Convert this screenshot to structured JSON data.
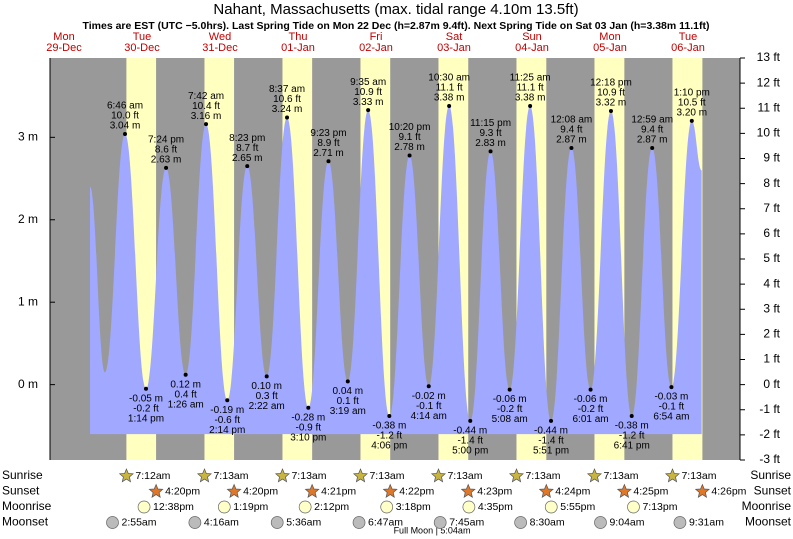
{
  "chart_data": {
    "type": "tide",
    "title": "Nahant, Massachusetts (max. tidal range 4.10m 13.5ft)",
    "subtitle": "Times are EST (UTC −5.0hrs). Last Spring Tide on Mon 22 Dec (h=2.87m 9.4ft). Next Spring Tide on Sat 03 Jan (h=3.38m 11.1ft)",
    "days": [
      {
        "day": "Mon",
        "date": "29-Dec",
        "x": 12
      },
      {
        "day": "Tue",
        "date": "30-Dec",
        "x": 36
      },
      {
        "day": "Wed",
        "date": "31-Dec",
        "x": 60
      },
      {
        "day": "Thu",
        "date": "01-Jan",
        "x": 84
      },
      {
        "day": "Fri",
        "date": "02-Jan",
        "x": 108
      },
      {
        "day": "Sat",
        "date": "03-Jan",
        "x": 132
      },
      {
        "day": "Sun",
        "date": "04-Jan",
        "x": 156
      },
      {
        "day": "Mon",
        "date": "05-Jan",
        "x": 180
      },
      {
        "day": "Tue",
        "date": "06-Jan",
        "x": 204
      }
    ],
    "xlim": [
      7.69,
      220
    ],
    "ylim": [
      -0.9144,
      3.9624
    ],
    "yticks": [
      {
        "value": 0,
        "label": "0 m"
      },
      {
        "value": 1,
        "label": "1 m"
      },
      {
        "value": 2,
        "label": "2 m"
      },
      {
        "value": 3,
        "label": "3 m"
      }
    ],
    "y2lim": [
      -3,
      13
    ],
    "y2ticks": [
      {
        "value": -3,
        "label": "-3 ft"
      },
      {
        "value": -2,
        "label": "-2 ft"
      },
      {
        "value": -1,
        "label": "-1 ft"
      },
      {
        "value": 0,
        "label": "0 ft"
      },
      {
        "value": 1,
        "label": "1 ft"
      },
      {
        "value": 2,
        "label": "2 ft"
      },
      {
        "value": 3,
        "label": "3 ft"
      },
      {
        "value": 4,
        "label": "4 ft"
      },
      {
        "value": 5,
        "label": "5 ft"
      },
      {
        "value": 6,
        "label": "6 ft"
      },
      {
        "value": 7,
        "label": "7 ft"
      },
      {
        "value": 8,
        "label": "8 ft"
      },
      {
        "value": 9,
        "label": "9 ft"
      },
      {
        "value": 10,
        "label": "10 ft"
      },
      {
        "value": 11,
        "label": "11 ft"
      },
      {
        "value": 12,
        "label": "12 ft"
      },
      {
        "value": 13,
        "label": "13 ft"
      }
    ],
    "color": "#a0a8ff",
    "x": [
      20,
      24.6,
      30.77,
      37.23,
      43.4,
      49.43,
      55.7,
      62.23,
      68.38,
      74.37,
      80.62,
      87.17,
      93.38,
      99.32,
      105.58,
      112.1,
      118.33,
      124.23,
      130.5,
      137,
      143.25,
      149.13,
      155.42,
      161.85,
      168.13,
      174.02,
      180.3,
      186.68,
      192.98,
      198.9,
      205.17,
      208.2
    ],
    "values": [
      2.4,
      0.15,
      3.04,
      -0.05,
      2.63,
      0.12,
      3.16,
      -0.19,
      2.65,
      0.1,
      3.24,
      -0.28,
      2.71,
      0.04,
      3.33,
      -0.38,
      2.78,
      -0.02,
      3.38,
      -0.44,
      2.83,
      -0.06,
      3.38,
      -0.44,
      2.87,
      -0.06,
      3.32,
      -0.38,
      2.87,
      -0.03,
      3.2,
      2.6
    ],
    "value_labels": [
      null,
      null,
      "3.04 m",
      "-0.05 m",
      "2.63 m",
      "0.12 m",
      "3.16 m",
      "-0.19 m",
      "2.65 m",
      "0.10 m",
      "3.24 m",
      "-0.28 m",
      "2.71 m",
      "0.04 m",
      "3.33 m",
      "-0.38 m",
      "2.78 m",
      "-0.02 m",
      "3.38 m",
      "-0.44 m",
      "2.83 m",
      "-0.06 m",
      "3.38 m",
      "-0.44 m",
      "2.87 m",
      "-0.06 m",
      "3.32 m",
      "-0.38 m",
      "2.87 m",
      "-0.03 m",
      "3.20 m",
      null
    ],
    "ft_labels": [
      null,
      null,
      "10.0 ft",
      "-0.2 ft",
      "8.6 ft",
      "0.4 ft",
      "10.4 ft",
      "-0.6 ft",
      "8.7 ft",
      "0.3 ft",
      "10.6 ft",
      "-0.9 ft",
      "8.9 ft",
      "0.1 ft",
      "10.9 ft",
      "-1.2 ft",
      "9.1 ft",
      "-0.1 ft",
      "11.1 ft",
      "-1.4 ft",
      "9.3 ft",
      "-0.2 ft",
      "11.1 ft",
      "-1.4 ft",
      "9.4 ft",
      "-0.2 ft",
      "10.9 ft",
      "-1.2 ft",
      "9.4 ft",
      "-0.1 ft",
      "10.5 ft",
      null
    ],
    "times": [
      null,
      null,
      "6:46 am",
      "1:14 pm",
      "7:24 pm",
      "1:26 am",
      "7:42 am",
      "2:14 pm",
      "8:23 pm",
      "2:22 am",
      "8:37 am",
      "3:10 pm",
      "9:23 pm",
      "3:19 am",
      "9:35 am",
      "4:06 pm",
      "10:20 pm",
      "4:14 am",
      "10:30 am",
      "5:00 pm",
      "11:15 pm",
      "5:08 am",
      "11:25 am",
      "5:51 pm",
      "12:08 am",
      "6:01 am",
      "12:18 pm",
      "6:41 pm",
      "12:59 am",
      "6:54 am",
      "1:10 pm",
      null
    ],
    "almanac": [
      {
        "label": "Sunrise",
        "icon": "sunrise",
        "x": [
          31.2,
          55.22,
          79.22,
          103.22,
          127.22,
          151.22,
          175.22,
          199.22
        ],
        "times": [
          "7:12am",
          "7:13am",
          "7:13am",
          "7:13am",
          "7:13am",
          "7:13am",
          "7:13am",
          "7:13am"
        ]
      },
      {
        "label": "Sunset",
        "icon": "sunset",
        "x": [
          40.33,
          64.33,
          88.35,
          112.37,
          136.38,
          160.4,
          184.42,
          208.43
        ],
        "times": [
          "4:20pm",
          "4:20pm",
          "4:21pm",
          "4:22pm",
          "4:23pm",
          "4:24pm",
          "4:25pm",
          "4:26pm"
        ]
      },
      {
        "label": "Moonrise",
        "icon": "moonrise",
        "x": [
          36.63,
          61.32,
          86.2,
          111.3,
          136.58,
          161.92,
          187.22
        ],
        "times": [
          "12:38pm",
          "1:19pm",
          "2:12pm",
          "3:18pm",
          "4:35pm",
          "5:55pm",
          "7:13pm"
        ]
      },
      {
        "label": "Moonset",
        "icon": "moonset",
        "x": [
          26.92,
          52.27,
          77.6,
          102.78,
          127.75,
          152.5,
          177.07,
          201.52
        ],
        "times": [
          "2:55am",
          "4:16am",
          "5:36am",
          "6:47am",
          "7:45am",
          "8:30am",
          "9:04am",
          "9:31am"
        ]
      }
    ],
    "footer": "Full Moon | 5:04am"
  }
}
